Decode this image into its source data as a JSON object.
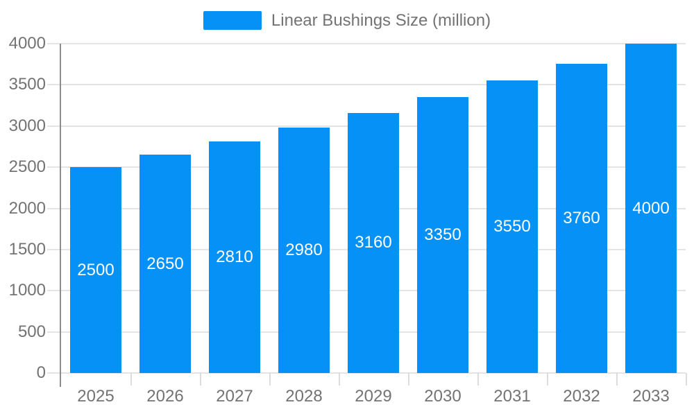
{
  "chart_data": {
    "type": "bar",
    "title": "",
    "xlabel": "",
    "ylabel": "",
    "categories": [
      "2025",
      "2026",
      "2027",
      "2028",
      "2029",
      "2030",
      "2031",
      "2032",
      "2033"
    ],
    "series": [
      {
        "name": "Linear Bushings Size (million)",
        "values": [
          2500,
          2650,
          2810,
          2980,
          3160,
          3350,
          3550,
          3760,
          4000
        ],
        "color": "#0591F5"
      }
    ],
    "ylim": [
      0,
      4000
    ],
    "yticks": [
      0,
      500,
      1000,
      1500,
      2000,
      2500,
      3000,
      3500,
      4000
    ],
    "grid": true,
    "legend_position": "top",
    "value_labels": "inside-center"
  },
  "legend": {
    "items": [
      {
        "label": "Linear Bushings Size (million)",
        "color": "#0591F5"
      }
    ]
  },
  "colors": {
    "bar": "#0591F5",
    "axis_line": "#8c8c8c",
    "gridline": "#e4e4e4",
    "tick": "#dcdcdc",
    "label_text": "#737373",
    "value_text": "#ffffff",
    "background": "#ffffff"
  }
}
